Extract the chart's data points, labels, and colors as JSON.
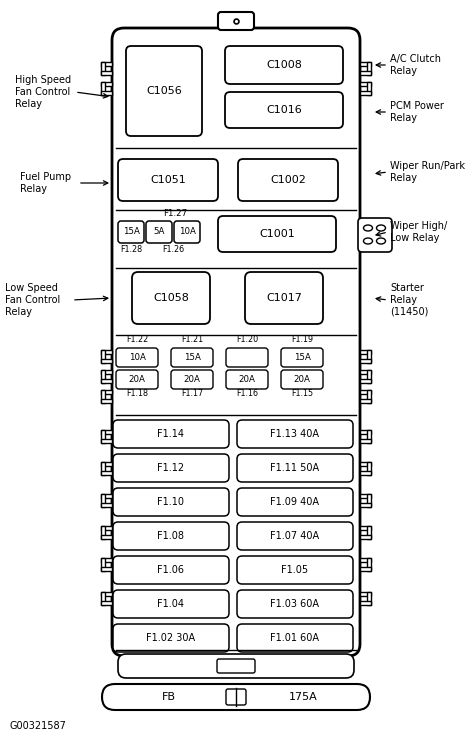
{
  "bg_color": "#ffffff",
  "line_color": "#000000",
  "watermark": "G00321587",
  "large_fuses": [
    {
      "left": "F1.14",
      "right": "F1.13 40A"
    },
    {
      "left": "F1.12",
      "right": "F1.11 50A"
    },
    {
      "left": "F1.10",
      "right": "F1.09 40A"
    },
    {
      "left": "F1.08",
      "right": "F1.07 40A"
    },
    {
      "left": "F1.06",
      "right": "F1.05"
    },
    {
      "left": "F1.04",
      "right": "F1.03 60A"
    },
    {
      "left": "F1.02 30A",
      "right": "F1.01 60A"
    }
  ],
  "small_fuses_top": [
    "F1.22",
    "F1.21",
    "F1.20",
    "F1.19"
  ],
  "small_fuses_val1": [
    "10A",
    "15A",
    "",
    "15A"
  ],
  "small_fuses_val2": [
    "20A",
    "20A",
    "20A",
    "20A"
  ],
  "small_fuses_bot": [
    "F1.18",
    "F1.17",
    "F1.16",
    "F1.15"
  ]
}
